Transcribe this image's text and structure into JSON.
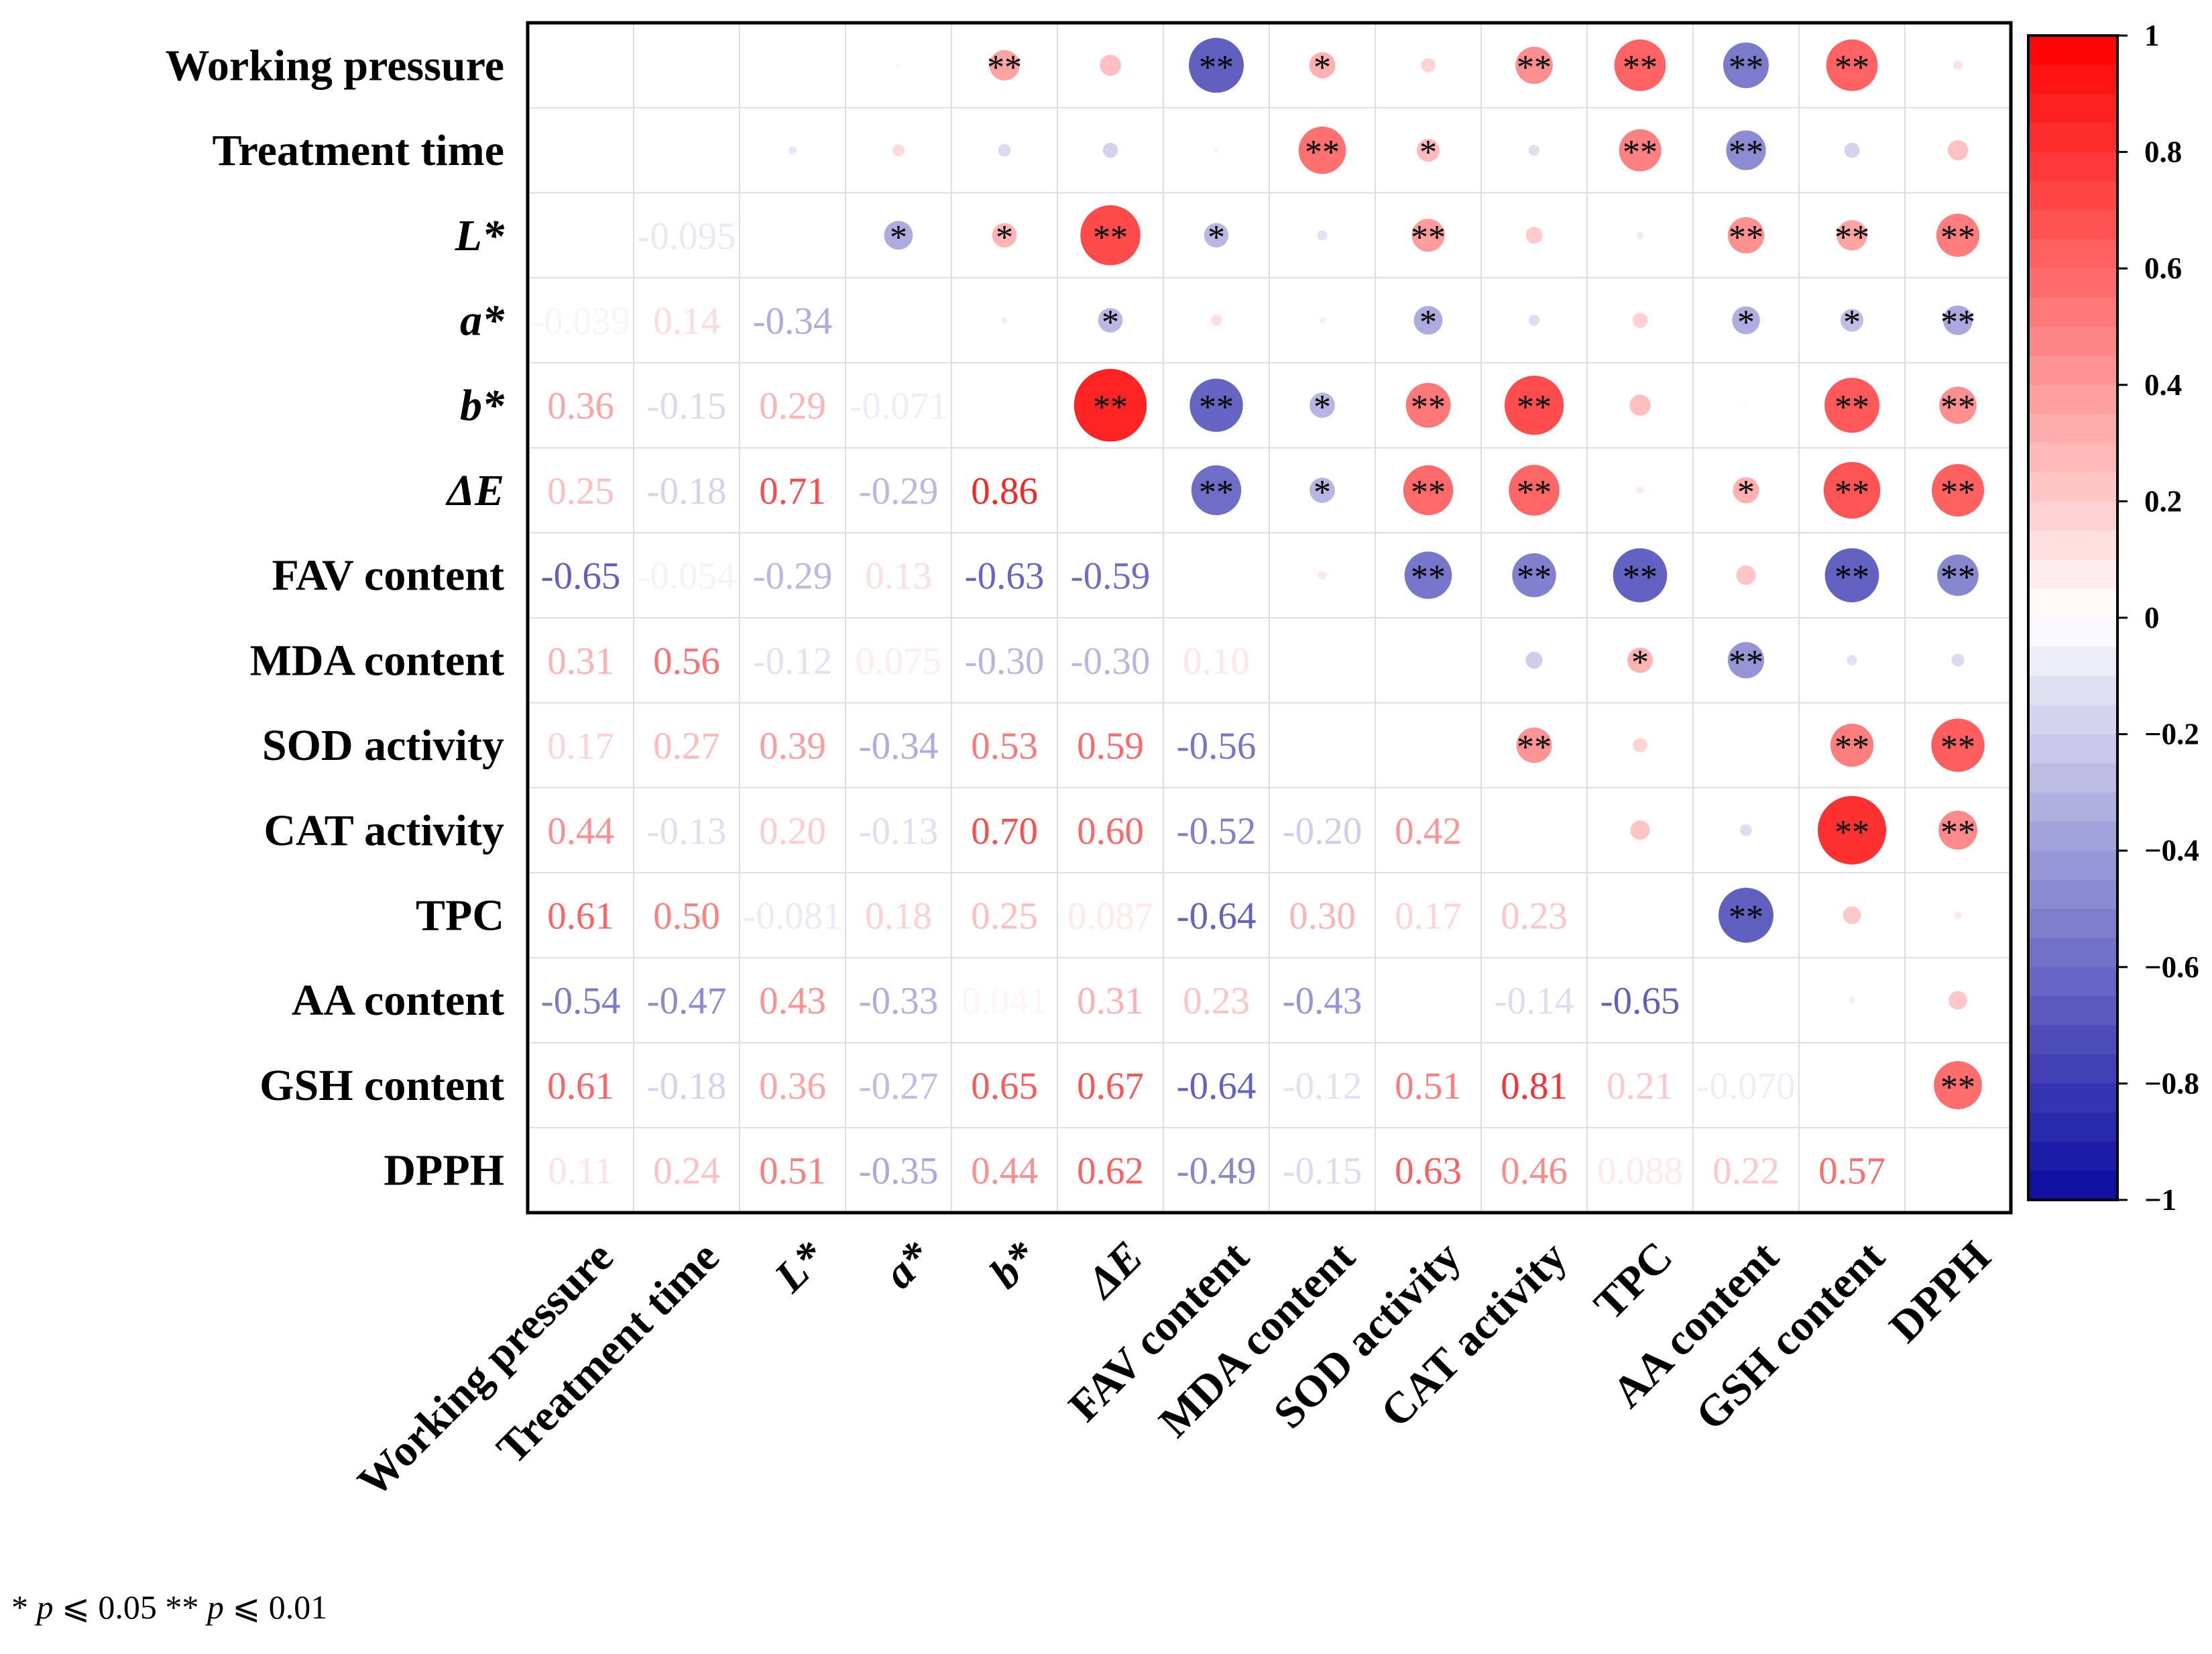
{
  "chart_data": {
    "type": "heatmap",
    "variables": [
      {
        "label": "Working pressure",
        "italic": false
      },
      {
        "label": "Treatment time",
        "italic": false
      },
      {
        "label": "L*",
        "italic": true
      },
      {
        "label": "a*",
        "italic": true
      },
      {
        "label": "b*",
        "italic": true
      },
      {
        "label": "ΔE",
        "italic": true
      },
      {
        "label": "FAV content",
        "italic": false
      },
      {
        "label": "MDA content",
        "italic": false
      },
      {
        "label": "SOD activity",
        "italic": false
      },
      {
        "label": "CAT activity",
        "italic": false
      },
      {
        "label": "TPC",
        "italic": false
      },
      {
        "label": "AA content",
        "italic": false
      },
      {
        "label": "GSH content",
        "italic": false
      },
      {
        "label": "DPPH",
        "italic": false
      }
    ],
    "values": [
      [],
      [
        null
      ],
      [
        null,
        -0.095
      ],
      [
        -0.039,
        0.14,
        -0.34
      ],
      [
        0.36,
        -0.15,
        0.29,
        -0.071
      ],
      [
        0.25,
        -0.18,
        0.71,
        -0.29,
        0.86
      ],
      [
        -0.65,
        -0.054,
        -0.29,
        0.13,
        -0.63,
        -0.59
      ],
      [
        0.31,
        0.56,
        -0.12,
        0.075,
        -0.3,
        -0.3,
        0.1
      ],
      [
        0.17,
        0.27,
        0.39,
        -0.34,
        0.53,
        0.59,
        -0.56,
        null
      ],
      [
        0.44,
        -0.13,
        0.2,
        -0.13,
        0.7,
        0.6,
        -0.52,
        -0.2,
        0.42
      ],
      [
        0.61,
        0.5,
        -0.081,
        0.18,
        0.25,
        0.087,
        -0.64,
        0.3,
        0.17,
        0.23
      ],
      [
        -0.54,
        -0.47,
        0.43,
        -0.33,
        0.041,
        0.31,
        0.23,
        -0.43,
        null,
        -0.14,
        -0.65
      ],
      [
        0.61,
        -0.18,
        0.36,
        -0.27,
        0.65,
        0.67,
        -0.64,
        -0.12,
        0.51,
        0.81,
        0.21,
        -0.07
      ],
      [
        0.11,
        0.24,
        0.51,
        -0.35,
        0.44,
        0.62,
        -0.49,
        -0.15,
        0.63,
        0.46,
        0.088,
        0.22,
        0.57
      ]
    ],
    "significance": [
      [],
      [
        ""
      ],
      [
        "",
        ""
      ],
      [
        "",
        "",
        "*"
      ],
      [
        "**",
        "",
        "*",
        ""
      ],
      [
        "",
        "",
        "**",
        "*",
        "**"
      ],
      [
        "**",
        "",
        "*",
        "",
        "**",
        "**"
      ],
      [
        "*",
        "**",
        "",
        "",
        "*",
        "*",
        ""
      ],
      [
        "",
        "*",
        "**",
        "*",
        "**",
        "**",
        "**",
        ""
      ],
      [
        "**",
        "",
        "",
        "",
        "**",
        "**",
        "**",
        "",
        "**"
      ],
      [
        "**",
        "**",
        "",
        "",
        "",
        "",
        "**",
        "*",
        "",
        ""
      ],
      [
        "**",
        "**",
        "**",
        "*",
        "",
        "*",
        "",
        "**",
        "",
        "",
        "**"
      ],
      [
        "**",
        "",
        "**",
        "*",
        "**",
        "**",
        "**",
        "",
        "**",
        "**",
        "",
        ""
      ],
      [
        "",
        "",
        "**",
        "**",
        "**",
        "**",
        "**",
        "",
        "**",
        "**",
        "",
        "",
        "**"
      ]
    ],
    "colorbar": {
      "min": -1,
      "max": 1,
      "ticks": [
        1,
        0.8,
        0.6,
        0.4,
        0.2,
        0,
        -0.2,
        -0.4,
        -0.6,
        -0.8,
        -1
      ],
      "tick_labels": [
        "1",
        "0.8",
        "0.6",
        "0.4",
        "0.2",
        "0",
        "−0.2",
        "−0.4",
        "−0.6",
        "−0.8",
        "−1"
      ]
    },
    "colormap": {
      "negative": "#0A0AA0",
      "zero": "#FFFFFF",
      "positive": "#FF0000"
    },
    "legend": [
      {
        "mark": "*",
        "symbol": "p",
        "condition": "⩽ 0.05"
      },
      {
        "mark": "**",
        "symbol": "p",
        "condition": "⩽ 0.01"
      }
    ]
  }
}
